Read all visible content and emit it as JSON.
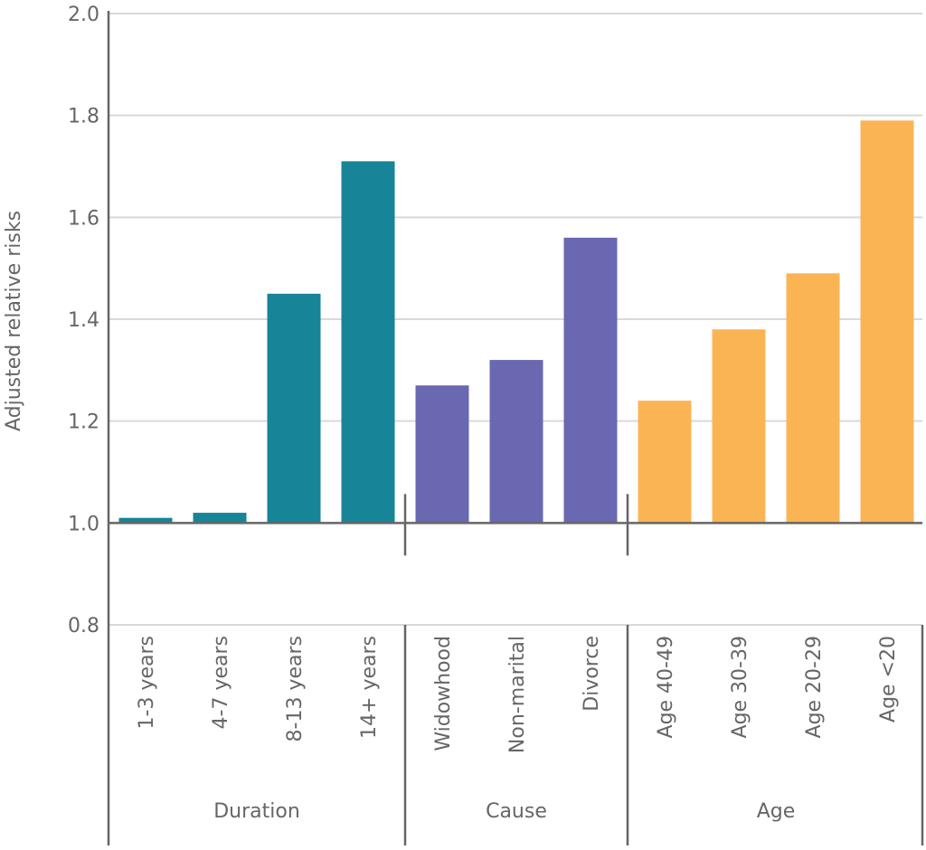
{
  "chart_data": {
    "type": "bar",
    "title": "",
    "ylabel": "Adjusted relative risks",
    "xlabel": "",
    "ylim": [
      0.8,
      2.0
    ],
    "yticks": [
      "0.8",
      "1.0",
      "1.2",
      "1.4",
      "1.6",
      "1.8",
      "2.0"
    ],
    "baseline": 1.0,
    "grid": true,
    "groups": [
      {
        "label": "Duration",
        "color": "#178497",
        "categories": [
          "1-3 years",
          "4-7 years",
          "8-13 years",
          "14+ years"
        ],
        "values": [
          1.01,
          1.02,
          1.45,
          1.71
        ]
      },
      {
        "label": "Cause",
        "color": "#6a68b0",
        "categories": [
          "Widowhood",
          "Non-marital",
          "Divorce"
        ],
        "values": [
          1.27,
          1.32,
          1.56
        ]
      },
      {
        "label": "Age",
        "color": "#fbb454",
        "categories": [
          "Age 40-49",
          "Age 30-39",
          "Age 20-29",
          "Age <20"
        ],
        "values": [
          1.24,
          1.38,
          1.49,
          1.79
        ]
      }
    ]
  }
}
